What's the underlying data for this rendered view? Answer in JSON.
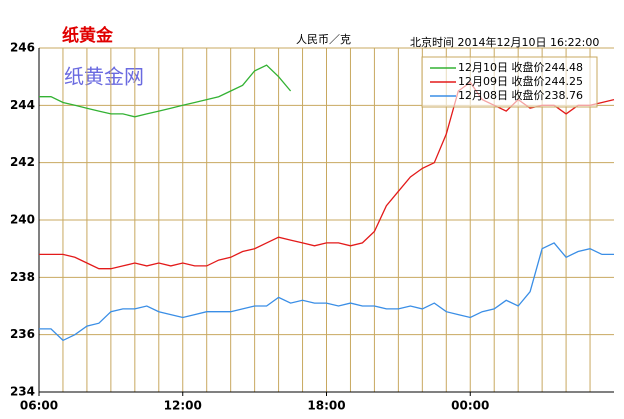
{
  "chart_data": {
    "type": "line",
    "title": "纸黄金",
    "watermark": "纸黄金网",
    "unit": "人民币／克",
    "timestamp": "北京时间 2014年12月10日 16:22:00",
    "x": [
      6,
      6.5,
      7,
      7.5,
      8,
      8.5,
      9,
      9.5,
      10,
      10.5,
      11,
      11.5,
      12,
      12.5,
      13,
      13.5,
      14,
      14.5,
      15,
      15.5,
      16,
      16.5,
      17,
      17.5,
      18,
      18.5,
      19,
      19.5,
      20,
      20.5,
      21,
      21.5,
      22,
      22.5,
      23,
      23.5,
      24,
      24.5,
      25,
      25.5,
      26,
      26.5,
      27,
      27.5,
      28,
      28.5,
      29,
      29.5,
      30
    ],
    "xlim": [
      6,
      30
    ],
    "xticks": [
      {
        "value": 6,
        "label": "06:00"
      },
      {
        "value": 12,
        "label": "12:00"
      },
      {
        "value": 18,
        "label": "18:00"
      },
      {
        "value": 24,
        "label": "00:00"
      }
    ],
    "xgrid": [
      7,
      8,
      9,
      10,
      11,
      12,
      13,
      14,
      15,
      16,
      17,
      18,
      19,
      20,
      21,
      22,
      23,
      24,
      25,
      26,
      27,
      28,
      29
    ],
    "ylim": [
      234,
      246
    ],
    "yticks": [
      234,
      236,
      238,
      240,
      242,
      244,
      246
    ],
    "grid": true,
    "legend": "top-right",
    "series": [
      {
        "name": "12月10日 收盘价244.48",
        "color": "#33b233",
        "values": [
          244.3,
          244.3,
          244.1,
          244.0,
          243.9,
          243.8,
          243.7,
          243.7,
          243.6,
          243.7,
          243.8,
          243.9,
          244.0,
          244.1,
          244.2,
          244.3,
          244.5,
          244.7,
          245.2,
          245.4,
          245.0,
          244.5,
          null,
          null,
          null,
          null,
          null,
          null,
          null,
          null,
          null,
          null,
          null,
          null,
          null,
          null,
          null,
          null,
          null,
          null,
          null,
          null,
          null,
          null,
          null,
          null,
          null,
          null,
          null
        ]
      },
      {
        "name": "12月09日 收盘价244.25",
        "color": "#e31a1a",
        "values": [
          238.8,
          238.8,
          238.8,
          238.7,
          238.5,
          238.3,
          238.3,
          238.4,
          238.5,
          238.4,
          238.5,
          238.4,
          238.5,
          238.4,
          238.4,
          238.6,
          238.7,
          238.9,
          239.0,
          239.2,
          239.4,
          239.3,
          239.2,
          239.1,
          239.2,
          239.2,
          239.1,
          239.2,
          239.6,
          240.5,
          241.0,
          241.5,
          241.8,
          242.0,
          243.0,
          244.5,
          244.8,
          244.2,
          244.0,
          243.8,
          244.2,
          243.9,
          244.0,
          244.0,
          243.7,
          244.0,
          244.0,
          244.1,
          244.2
        ]
      },
      {
        "name": "12月08日 收盘价238.76",
        "color": "#3a8ee6",
        "values": [
          236.2,
          236.2,
          235.8,
          236.0,
          236.3,
          236.4,
          236.8,
          236.9,
          236.9,
          237.0,
          236.8,
          236.7,
          236.6,
          236.7,
          236.8,
          236.8,
          236.8,
          236.9,
          237.0,
          237.0,
          237.3,
          237.1,
          237.2,
          237.1,
          237.1,
          237.0,
          237.1,
          237.0,
          237.0,
          236.9,
          236.9,
          237.0,
          236.9,
          237.1,
          236.8,
          236.7,
          236.6,
          236.8,
          236.9,
          237.2,
          237.0,
          237.5,
          239.0,
          239.2,
          238.7,
          238.9,
          239.0,
          238.8,
          238.8
        ]
      }
    ]
  }
}
